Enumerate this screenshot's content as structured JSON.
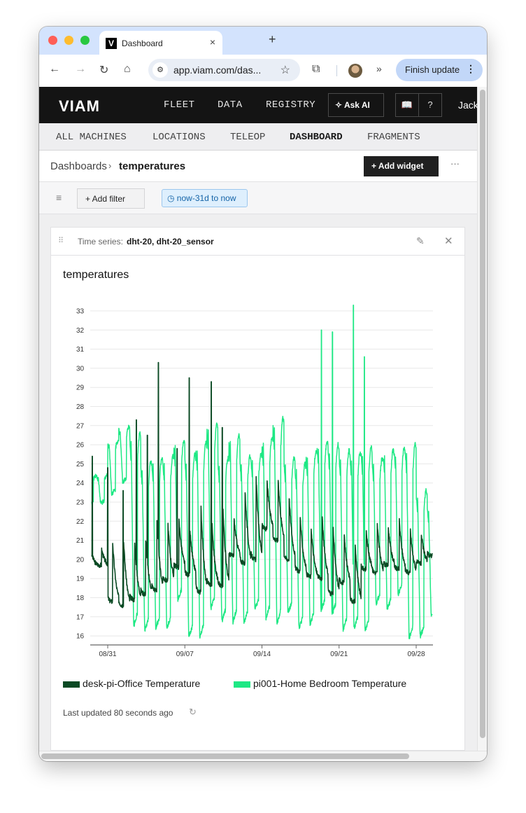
{
  "browser": {
    "tab_title": "Dashboard",
    "tab_favicon": "V",
    "url": "app.viam.com/das...",
    "finish_update_label": "Finish update",
    "icons": {
      "back": "←",
      "forward": "→",
      "reload": "↻",
      "home": "⌂",
      "site_info": "⚙",
      "star": "☆",
      "extensions": "⧉",
      "more_tools": "»",
      "menu": "⋮",
      "close_tab": "×",
      "new_tab": "+"
    }
  },
  "topnav": {
    "logo": "VIAM",
    "links": [
      "FLEET",
      "DATA",
      "REGISTRY"
    ],
    "ask_ai_label": "Ask AI",
    "ask_ai_icon": "✧",
    "docs_icon": "📖",
    "help_icon": "?",
    "user": "Jack"
  },
  "subnav": {
    "links": [
      "ALL MACHINES",
      "LOCATIONS",
      "TELEOP",
      "DASHBOARD",
      "FRAGMENTS"
    ],
    "active": "DASHBOARD"
  },
  "header": {
    "breadcrumb_root": "Dashboards",
    "breadcrumb_sep": "›",
    "breadcrumb_current": "temperatures",
    "add_widget_label": "+  Add widget",
    "more_icon": "···"
  },
  "filterbar": {
    "filter_icon": "≡",
    "add_filter_label": "+   Add filter",
    "time_range": "◷ now-31d to now"
  },
  "widget": {
    "type_label": "Time series:",
    "type_value": "dht-20, dht-20_sensor",
    "drag_icon": "⠿",
    "edit_icon": "✎",
    "close_icon": "✕",
    "chart_title": "temperatures",
    "last_updated": "Last updated 80 seconds ago",
    "refresh_icon": "↻"
  },
  "chart_data": {
    "type": "line",
    "title": "temperatures",
    "xlabel": "",
    "ylabel": "",
    "ylim": [
      15.5,
      33.4
    ],
    "yticks": [
      16,
      17,
      18,
      19,
      20,
      21,
      22,
      23,
      24,
      25,
      26,
      27,
      28,
      29,
      30,
      31,
      32,
      33
    ],
    "xticks": [
      "08/31",
      "09/07",
      "09/14",
      "09/21",
      "09/28"
    ],
    "x_range_days": [
      -1.5,
      29.5
    ],
    "x_day0": "08/31",
    "grid": true,
    "legend_position": "bottom",
    "x": [
      "08/30",
      "08/31",
      "09/01",
      "09/02",
      "09/03",
      "09/04",
      "09/05",
      "09/06",
      "09/07",
      "09/08",
      "09/09",
      "09/10",
      "09/11",
      "09/12",
      "09/13",
      "09/14",
      "09/15",
      "09/16",
      "09/17",
      "09/18",
      "09/19",
      "09/20",
      "09/21",
      "09/22",
      "09/23",
      "09/24",
      "09/25",
      "09/26",
      "09/27",
      "09/28",
      "09/29"
    ],
    "series": [
      {
        "name": "desk-pi-Office Temperature",
        "color": "#0b4a24",
        "daily_min": [
          19.7,
          17.8,
          17.6,
          17.9,
          18.2,
          18.4,
          18.9,
          19.6,
          19.2,
          18.3,
          18.7,
          18.6,
          20.2,
          19.8,
          20.0,
          21.6,
          21.0,
          20.0,
          19.4,
          19.1,
          19.0,
          18.2,
          18.8,
          17.8,
          19.5,
          19.3,
          19.7,
          19.5,
          19.3,
          19.8,
          20.2
        ],
        "daily_max": [
          20.5,
          20.9,
          20.9,
          20.8,
          21.0,
          22.3,
          22.0,
          22.2,
          21.6,
          23.0,
          22.0,
          22.8,
          22.2,
          23.8,
          24.6,
          24.2,
          24.4,
          23.5,
          22.4,
          21.8,
          22.4,
          21.8,
          21.4,
          20.9,
          21.6,
          22.0,
          21.8,
          22.2,
          21.7,
          21.4,
          21.9
        ],
        "spikes": [
          [
            -1.4,
            25.4
          ],
          [
            0.0,
            24.8
          ],
          [
            1.4,
            23.6
          ],
          [
            2.6,
            27.3
          ],
          [
            3.6,
            26.5
          ],
          [
            4.6,
            30.3
          ],
          [
            6.3,
            25.8
          ],
          [
            7.4,
            29.5
          ],
          [
            9.4,
            29.3
          ],
          [
            10.4,
            26.9
          ]
        ]
      },
      {
        "name": "pi001-Home Bedroom Temperature",
        "color": "#1ee884",
        "daily_min": [
          22.9,
          23.4,
          24.0,
          16.3,
          16.1,
          16.2,
          16.2,
          17.7,
          15.7,
          15.7,
          17.2,
          16.6,
          16.5,
          16.5,
          17.2,
          16.7,
          16.4,
          17.0,
          16.2,
          16.4,
          17.1,
          16.9,
          16.1,
          16.2,
          16.0,
          17.5,
          17.2,
          18.0,
          15.6,
          15.8,
          17.0
        ],
        "daily_max": [
          24.4,
          26.2,
          26.9,
          26.6,
          25.1,
          25.3,
          25.4,
          26.2,
          25.5,
          26.1,
          27.1,
          25.3,
          26.5,
          25.4,
          25.5,
          26.4,
          27.4,
          25.3,
          25.0,
          25.7,
          26.2,
          26.0,
          25.7,
          25.6,
          25.9,
          25.3,
          25.7,
          25.8,
          26.1,
          23.6,
          22.8
        ],
        "spikes": [
          [
            19.4,
            32.0
          ],
          [
            20.4,
            31.9
          ],
          [
            22.3,
            33.3
          ],
          [
            23.3,
            30.6
          ]
        ]
      }
    ]
  }
}
